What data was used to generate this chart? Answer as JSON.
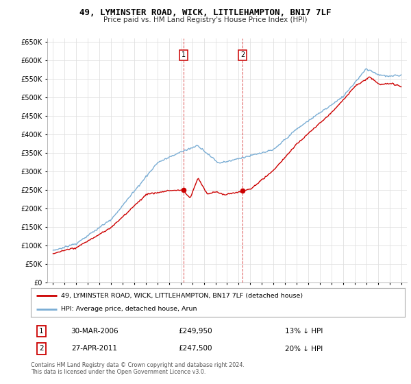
{
  "title": "49, LYMINSTER ROAD, WICK, LITTLEHAMPTON, BN17 7LF",
  "subtitle": "Price paid vs. HM Land Registry's House Price Index (HPI)",
  "legend_line1": "49, LYMINSTER ROAD, WICK, LITTLEHAMPTON, BN17 7LF (detached house)",
  "legend_line2": "HPI: Average price, detached house, Arun",
  "transactions": [
    {
      "num": 1,
      "date": "30-MAR-2006",
      "price": 249950,
      "pct": "13%",
      "dir": "↓"
    },
    {
      "num": 2,
      "date": "27-APR-2011",
      "price": 247500,
      "pct": "20%",
      "dir": "↓"
    }
  ],
  "footnote": "Contains HM Land Registry data © Crown copyright and database right 2024.\nThis data is licensed under the Open Government Licence v3.0.",
  "red_color": "#cc0000",
  "blue_color": "#7aadd4",
  "marker1_x": 2006.25,
  "marker2_x": 2011.33,
  "marker1_y": 249950,
  "marker2_y": 247500,
  "ylim": [
    0,
    660000
  ],
  "xlim_start": 1994.5,
  "xlim_end": 2025.5,
  "background_color": "#ffffff",
  "grid_color": "#e0e0e0"
}
